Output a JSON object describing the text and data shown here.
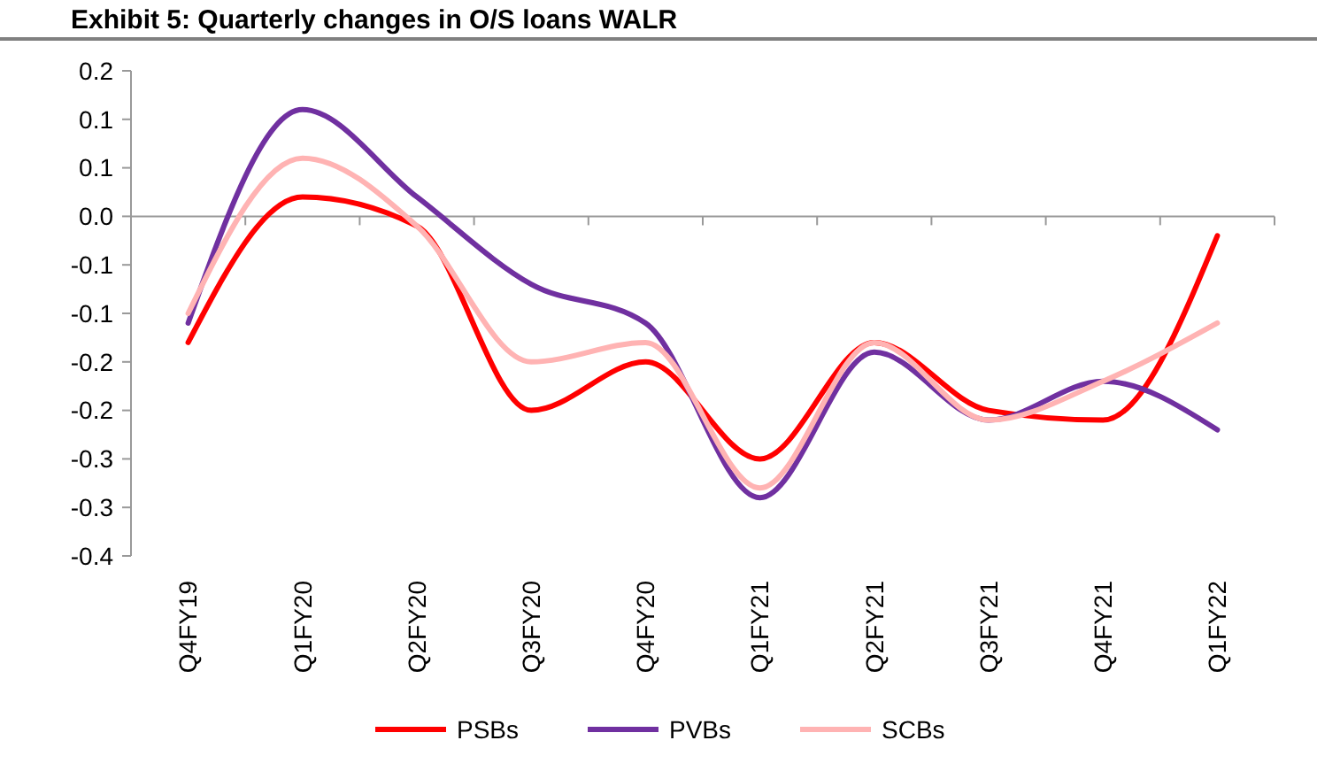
{
  "chart_data": {
    "type": "line",
    "title": "Exhibit 5: Quarterly changes in O/S loans WALR",
    "categories": [
      "Q4FY19",
      "Q1FY20",
      "Q2FY20",
      "Q3FY20",
      "Q4FY20",
      "Q1FY21",
      "Q2FY21",
      "Q3FY21",
      "Q4FY21",
      "Q1FY22"
    ],
    "series": [
      {
        "name": "PSBs",
        "color": "#ff0000",
        "values": [
          -0.13,
          0.02,
          -0.01,
          -0.2,
          -0.15,
          -0.25,
          -0.13,
          -0.2,
          -0.21,
          -0.02
        ]
      },
      {
        "name": "PVBs",
        "color": "#7030a0",
        "values": [
          -0.11,
          0.11,
          0.02,
          -0.07,
          -0.11,
          -0.29,
          -0.14,
          -0.21,
          -0.17,
          -0.22
        ]
      },
      {
        "name": "SCBs",
        "color": "#ffb3b3",
        "values": [
          -0.1,
          0.06,
          -0.01,
          -0.15,
          -0.13,
          -0.28,
          -0.13,
          -0.21,
          -0.17,
          -0.11
        ]
      }
    ],
    "ylim": [
      -0.35,
      0.15
    ],
    "yticks": [
      {
        "value": 0.15,
        "label": "0.2"
      },
      {
        "value": 0.1,
        "label": "0.1"
      },
      {
        "value": 0.05,
        "label": "0.1"
      },
      {
        "value": 0,
        "label": "0.0"
      },
      {
        "value": -0.05,
        "label": "-0.1"
      },
      {
        "value": -0.1,
        "label": "-0.1"
      },
      {
        "value": -0.15,
        "label": "-0.2"
      },
      {
        "value": -0.2,
        "label": "-0.2"
      },
      {
        "value": -0.25,
        "label": "-0.3"
      },
      {
        "value": -0.3,
        "label": "-0.3"
      },
      {
        "value": -0.35,
        "label": "-0.4"
      }
    ],
    "legend": "bottom",
    "marker": "none",
    "line_style": "solid"
  }
}
